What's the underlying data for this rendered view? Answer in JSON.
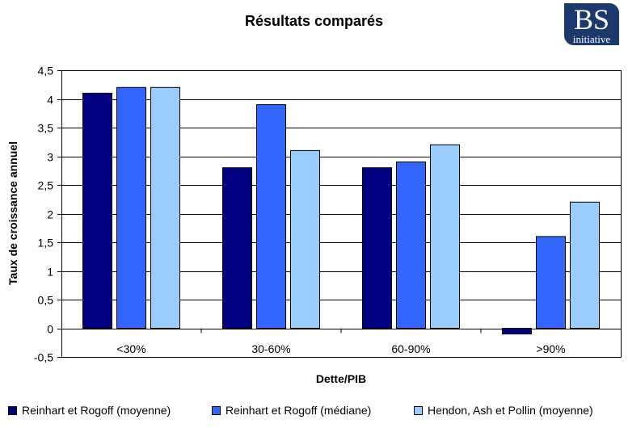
{
  "logo": {
    "main": "BS",
    "sub": "initiative"
  },
  "chart_data": {
    "type": "bar",
    "title": "Résultats comparés",
    "xlabel": "Dette/PIB",
    "ylabel": "Taux de croissance  annuel",
    "categories": [
      "<30%",
      "30-60%",
      "60-90%",
      ">90%"
    ],
    "ylim": [
      -0.5,
      4.5
    ],
    "yticks": [
      -0.5,
      0,
      0.5,
      1,
      1.5,
      2,
      2.5,
      3,
      3.5,
      4,
      4.5
    ],
    "ytick_labels": [
      "-0,5",
      "0",
      "0,5",
      "1",
      "1,5",
      "2",
      "2,5",
      "3",
      "3,5",
      "4",
      "4,5"
    ],
    "grid": true,
    "legend_position": "bottom",
    "series": [
      {
        "name": "Reinhart et Rogoff (moyenne)",
        "color": "#000080",
        "values": [
          4.1,
          2.8,
          2.8,
          -0.1
        ]
      },
      {
        "name": "Reinhart et Rogoff (médiane)",
        "color": "#3366FF",
        "values": [
          4.2,
          3.9,
          2.9,
          1.6
        ]
      },
      {
        "name": "Hendon, Ash et Pollin (moyenne)",
        "color": "#99CCFF",
        "values": [
          4.2,
          3.1,
          3.2,
          2.2
        ]
      }
    ]
  }
}
